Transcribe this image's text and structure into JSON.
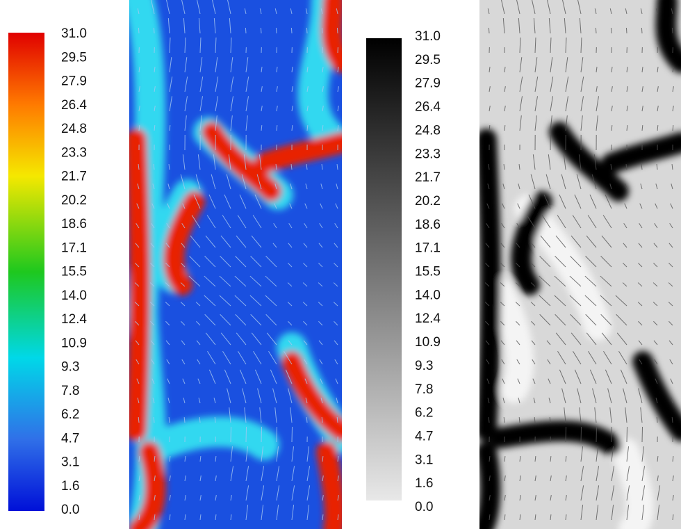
{
  "colorbars": [
    {
      "labels": [
        "31.0",
        "29.5",
        "27.9",
        "26.4",
        "24.8",
        "23.3",
        "21.7",
        "20.2",
        "18.6",
        "17.1",
        "15.5",
        "14.0",
        "12.4",
        "10.9",
        "9.3",
        "7.8",
        "6.2",
        "4.7",
        "3.1",
        "1.6",
        "0.0"
      ]
    },
    {
      "labels": [
        "31.0",
        "29.5",
        "27.9",
        "26.4",
        "24.8",
        "23.3",
        "21.7",
        "20.2",
        "18.6",
        "17.1",
        "15.5",
        "14.0",
        "12.4",
        "10.9",
        "9.3",
        "7.8",
        "6.2",
        "4.7",
        "3.1",
        "1.6",
        "0.0"
      ]
    }
  ]
}
